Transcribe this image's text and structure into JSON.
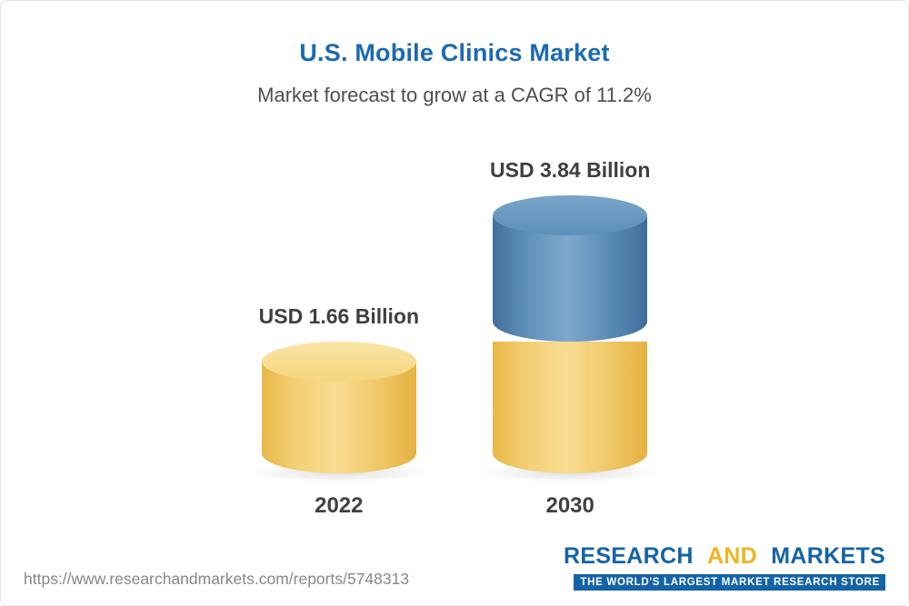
{
  "header": {
    "title": "U.S. Mobile Clinics Market",
    "subtitle": "Market forecast to grow at a CAGR of 11.2%"
  },
  "chart_data": {
    "type": "bar",
    "title": "U.S. Mobile Clinics Market",
    "subtitle": "Market forecast to grow at a CAGR of 11.2%",
    "categories": [
      "2022",
      "2030"
    ],
    "values": [
      1.66,
      3.84
    ],
    "value_labels": [
      "USD 1.66 Billion",
      "USD 3.84 Billion"
    ],
    "unit": "USD Billion",
    "cagr_percent": 11.2,
    "ylim": [
      0,
      4
    ],
    "grid": false,
    "legend": false,
    "colors": {
      "bar_2022": "#f3cd6f",
      "bar_2030_growth_segment": "#5f90ba",
      "bar_2030_base_segment": "#f3cd6f",
      "title_color": "#1b6ab1"
    }
  },
  "footer": {
    "url": "https://www.researchandmarkets.com/reports/5748313",
    "logo": {
      "research": "RESEARCH",
      "and": "AND",
      "markets": "MARKETS",
      "tagline": "THE WORLD'S LARGEST MARKET RESEARCH STORE"
    }
  }
}
